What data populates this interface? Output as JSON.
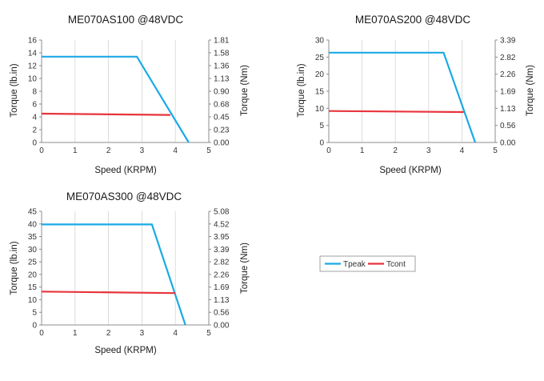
{
  "legend": [
    {
      "name": "Tpeak",
      "color": "#1AAAE6"
    },
    {
      "name": "Tcont",
      "color": "#E8343C"
    }
  ],
  "chart_data": [
    {
      "type": "line",
      "title": "ME070AS100 @48VDC",
      "xlabel": "Speed (KRPM)",
      "ylabel": "Torque (lb.in)",
      "y2label": "Torque (Nm)",
      "xlim": [
        0,
        5
      ],
      "ylim": [
        0,
        16
      ],
      "x_ticks": [
        "0",
        "1",
        "2",
        "3",
        "4",
        "5"
      ],
      "y_ticks": [
        "0",
        "2",
        "4",
        "6",
        "8",
        "10",
        "12",
        "14",
        "16"
      ],
      "y2_ticks": [
        "0.00",
        "0.23",
        "0.45",
        "0.68",
        "0.90",
        "1.13",
        "1.36",
        "1.58",
        "1.81"
      ],
      "grid": "vertical",
      "series": [
        {
          "name": "Tpeak",
          "color": "#1AAAE6",
          "x": [
            0,
            2.85,
            4.4
          ],
          "y": [
            13.4,
            13.4,
            0
          ]
        },
        {
          "name": "Tcont",
          "color": "#E8343C",
          "x": [
            0,
            3.85
          ],
          "y": [
            4.5,
            4.3
          ]
        }
      ]
    },
    {
      "type": "line",
      "title": "ME070AS200 @48VDC",
      "xlabel": "Speed (KRPM)",
      "ylabel": "Torque (lb.in)",
      "y2label": "Torque (Nm)",
      "xlim": [
        0,
        5
      ],
      "ylim": [
        0,
        30
      ],
      "x_ticks": [
        "0",
        "1",
        "2",
        "3",
        "4",
        "5"
      ],
      "y_ticks": [
        "0",
        "5",
        "10",
        "15",
        "20",
        "25",
        "30"
      ],
      "y2_ticks": [
        "0.00",
        "0.56",
        "1.13",
        "1.69",
        "2.26",
        "2.82",
        "3.39"
      ],
      "grid": "vertical",
      "series": [
        {
          "name": "Tpeak",
          "color": "#1AAAE6",
          "x": [
            0,
            3.45,
            4.4
          ],
          "y": [
            26.3,
            26.3,
            0
          ]
        },
        {
          "name": "Tcont",
          "color": "#E8343C",
          "x": [
            0,
            4.05
          ],
          "y": [
            9.2,
            8.9
          ]
        }
      ]
    },
    {
      "type": "line",
      "title": "ME070AS300 @48VDC",
      "xlabel": "Speed (KRPM)",
      "ylabel": "Torque (lb.in)",
      "y2label": "Torque (Nm)",
      "xlim": [
        0,
        5
      ],
      "ylim": [
        0,
        45
      ],
      "x_ticks": [
        "0",
        "1",
        "2",
        "3",
        "4",
        "5"
      ],
      "y_ticks": [
        "0",
        "5",
        "10",
        "15",
        "20",
        "25",
        "30",
        "35",
        "40",
        "45"
      ],
      "y2_ticks": [
        "0.00",
        "0.56",
        "1.13",
        "1.69",
        "2.26",
        "2.82",
        "3.39",
        "3.95",
        "4.52",
        "5.08"
      ],
      "grid": "vertical",
      "series": [
        {
          "name": "Tpeak",
          "color": "#1AAAE6",
          "x": [
            0,
            3.3,
            4.3
          ],
          "y": [
            39.8,
            39.8,
            0
          ]
        },
        {
          "name": "Tcont",
          "color": "#E8343C",
          "x": [
            0,
            4.0
          ],
          "y": [
            13.2,
            12.6
          ]
        }
      ]
    }
  ]
}
